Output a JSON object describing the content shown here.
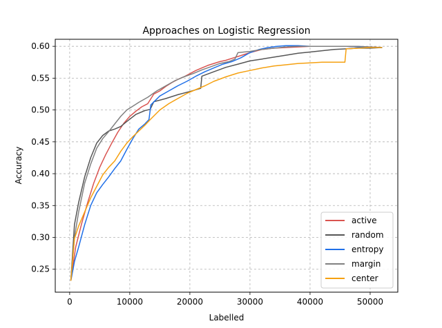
{
  "chart_data": {
    "type": "line",
    "title": "Approaches on Logistic Regression",
    "xlabel": "Labelled",
    "ylabel": "Accuracy",
    "xlim": [
      -2400,
      54600
    ],
    "ylim": [
      0.214,
      0.611
    ],
    "xticks": [
      0,
      10000,
      20000,
      30000,
      40000,
      50000
    ],
    "xtick_labels": [
      "0",
      "10000",
      "20000",
      "30000",
      "40000",
      "50000"
    ],
    "yticks": [
      0.25,
      0.3,
      0.35,
      0.4,
      0.45,
      0.5,
      0.55,
      0.6
    ],
    "ytick_labels": [
      "0.25",
      "0.30",
      "0.35",
      "0.40",
      "0.45",
      "0.50",
      "0.55",
      "0.60"
    ],
    "grid": true,
    "legend_position": "lower-right",
    "series": [
      {
        "name": "active",
        "color": "#d9534f",
        "x": [
          200,
          1000,
          2000,
          3000,
          4000,
          5000,
          6000,
          7000,
          8000,
          9000,
          10000,
          11000,
          12000,
          13000,
          14000,
          15000,
          16000,
          17000,
          18000,
          19000,
          20000,
          21000,
          22000,
          23000,
          24000,
          25000,
          26000,
          27000,
          28000,
          30000,
          32000,
          34000,
          36000,
          38000,
          40000,
          42000,
          44000,
          46000,
          48000,
          50000,
          52000
        ],
        "y": [
          0.232,
          0.285,
          0.322,
          0.355,
          0.385,
          0.41,
          0.43,
          0.448,
          0.465,
          0.479,
          0.49,
          0.498,
          0.505,
          0.51,
          0.525,
          0.53,
          0.537,
          0.543,
          0.548,
          0.552,
          0.557,
          0.562,
          0.566,
          0.57,
          0.573,
          0.576,
          0.578,
          0.581,
          0.584,
          0.59,
          0.595,
          0.597,
          0.598,
          0.599,
          0.6,
          0.6,
          0.6,
          0.6,
          0.599,
          0.599,
          0.598
        ]
      },
      {
        "name": "random",
        "color": "#555555",
        "x": [
          200,
          800,
          1500,
          2500,
          3500,
          4500,
          5500,
          6500,
          7500,
          8500,
          9500,
          11000,
          12500,
          13400,
          14000,
          16000,
          18000,
          20000,
          21800,
          22000,
          24000,
          26000,
          28000,
          30000,
          32000,
          34000,
          36000,
          38000,
          40000,
          42000,
          44000,
          46000,
          48000,
          50000,
          52000
        ],
        "y": [
          0.232,
          0.32,
          0.355,
          0.395,
          0.425,
          0.448,
          0.46,
          0.467,
          0.47,
          0.474,
          0.482,
          0.493,
          0.499,
          0.501,
          0.513,
          0.518,
          0.524,
          0.529,
          0.534,
          0.553,
          0.56,
          0.567,
          0.572,
          0.577,
          0.58,
          0.583,
          0.586,
          0.589,
          0.591,
          0.593,
          0.595,
          0.596,
          0.597,
          0.597,
          0.598
        ]
      },
      {
        "name": "entropy",
        "color": "#1f6fe8",
        "x": [
          200,
          800,
          1500,
          2500,
          3500,
          4500,
          5500,
          6500,
          7500,
          8500,
          9500,
          10500,
          11500,
          12500,
          13200,
          13500,
          15000,
          16500,
          18000,
          19500,
          21000,
          22500,
          24000,
          25500,
          27000,
          28500,
          30000,
          31500,
          33000,
          34500,
          36000,
          38000,
          40000,
          42000,
          44000,
          46000,
          48000,
          50000,
          52000
        ],
        "y": [
          0.232,
          0.262,
          0.285,
          0.32,
          0.35,
          0.37,
          0.383,
          0.395,
          0.408,
          0.42,
          0.438,
          0.455,
          0.47,
          0.478,
          0.485,
          0.508,
          0.522,
          0.53,
          0.538,
          0.545,
          0.553,
          0.56,
          0.566,
          0.572,
          0.576,
          0.582,
          0.59,
          0.595,
          0.598,
          0.6,
          0.601,
          0.601,
          0.6,
          0.6,
          0.6,
          0.6,
          0.599,
          0.598,
          0.598
        ]
      },
      {
        "name": "margin",
        "color": "#808080",
        "x": [
          200,
          800,
          1500,
          2500,
          3500,
          4500,
          5500,
          6500,
          7500,
          8500,
          9500,
          10500,
          11500,
          13000,
          14500,
          16000,
          17500,
          19000,
          20500,
          22000,
          23500,
          25000,
          26500,
          27500,
          28000,
          30000,
          32000,
          34000,
          36000,
          38000,
          40000,
          42000,
          44000,
          46000,
          48000,
          50000,
          52000
        ],
        "y": [
          0.232,
          0.3,
          0.34,
          0.385,
          0.415,
          0.44,
          0.455,
          0.466,
          0.478,
          0.49,
          0.5,
          0.506,
          0.512,
          0.52,
          0.53,
          0.538,
          0.546,
          0.552,
          0.557,
          0.563,
          0.568,
          0.573,
          0.576,
          0.58,
          0.59,
          0.592,
          0.595,
          0.597,
          0.599,
          0.6,
          0.6,
          0.6,
          0.6,
          0.6,
          0.6,
          0.599,
          0.598
        ]
      },
      {
        "name": "center",
        "color": "#f5a00f",
        "x": [
          200,
          800,
          1500,
          2500,
          3500,
          4500,
          5500,
          6500,
          7500,
          8500,
          9500,
          10500,
          11500,
          12500,
          13500,
          15000,
          16500,
          18000,
          19500,
          21000,
          22500,
          24000,
          26000,
          28000,
          30000,
          32000,
          34000,
          36000,
          38000,
          40000,
          42000,
          44000,
          45800,
          46000,
          48000,
          50000,
          52000
        ],
        "y": [
          0.232,
          0.298,
          0.318,
          0.34,
          0.362,
          0.38,
          0.398,
          0.41,
          0.42,
          0.435,
          0.448,
          0.458,
          0.467,
          0.476,
          0.486,
          0.5,
          0.51,
          0.518,
          0.526,
          0.532,
          0.538,
          0.545,
          0.552,
          0.558,
          0.562,
          0.566,
          0.569,
          0.571,
          0.573,
          0.574,
          0.575,
          0.575,
          0.575,
          0.596,
          0.597,
          0.598,
          0.598
        ]
      }
    ]
  }
}
